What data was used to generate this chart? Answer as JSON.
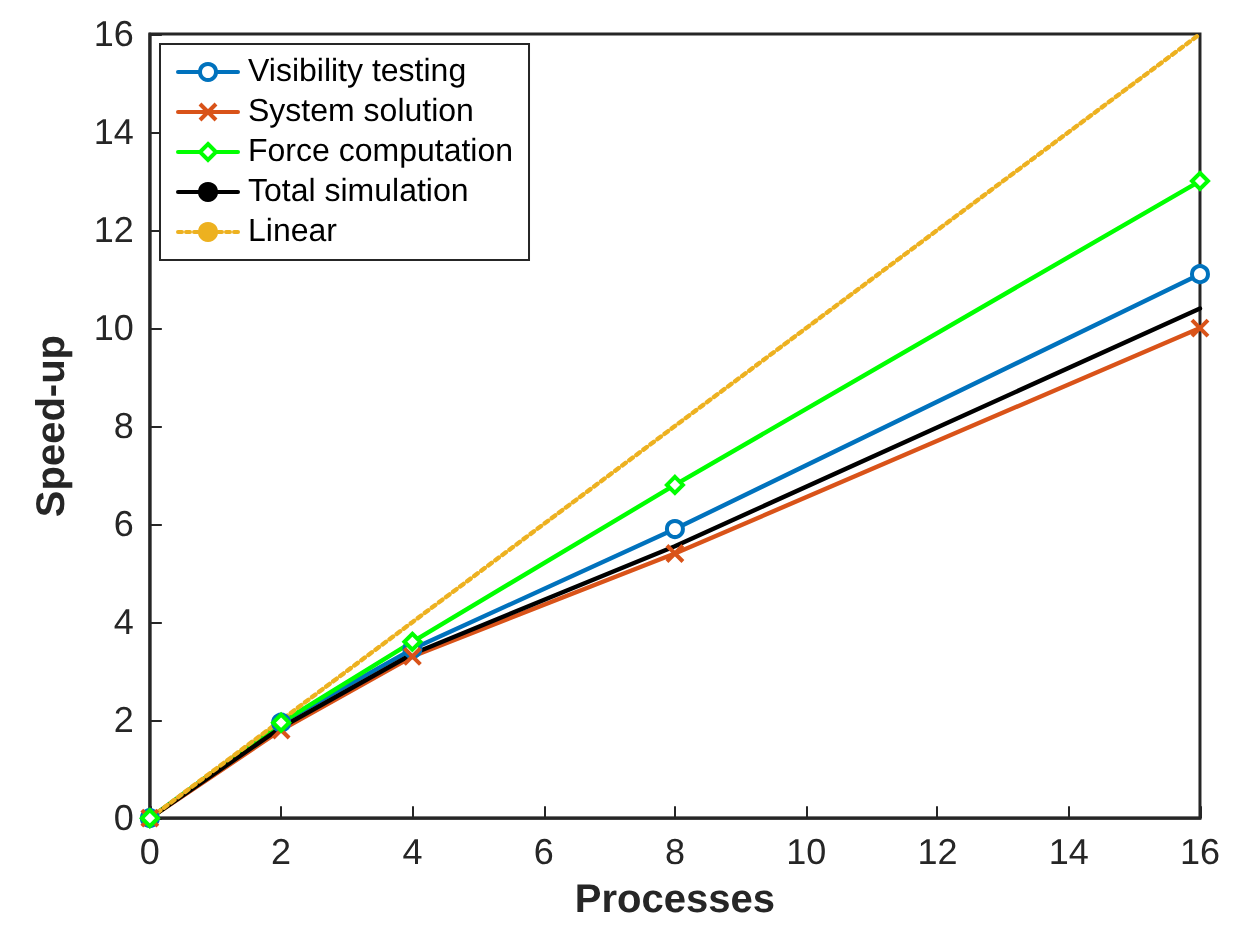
{
  "chart_data": {
    "type": "line",
    "xlabel": "Processes",
    "ylabel": "Speed-up",
    "x": [
      0,
      2,
      4,
      8,
      16
    ],
    "series": [
      {
        "name": "Visibility testing",
        "color": "#0072bd",
        "marker": "circle",
        "values": [
          0,
          1.95,
          3.45,
          5.9,
          11.1
        ]
      },
      {
        "name": "System solution",
        "color": "#d95319",
        "marker": "cross",
        "values": [
          0,
          1.8,
          3.3,
          5.4,
          10.0
        ]
      },
      {
        "name": "Force computation",
        "color": "#00ff00",
        "marker": "diamond",
        "values": [
          0,
          1.95,
          3.6,
          6.8,
          13.0
        ]
      },
      {
        "name": "Total simulation",
        "color": "#000000",
        "marker": "none",
        "values": [
          0,
          1.85,
          3.35,
          5.55,
          10.4
        ]
      },
      {
        "name": "Linear",
        "color": "#edb120",
        "marker": "none",
        "line_style": "dotted",
        "values": [
          0,
          2,
          4,
          8,
          16
        ]
      }
    ],
    "xlim": [
      0,
      16
    ],
    "xticks": [
      0,
      2,
      4,
      6,
      8,
      10,
      12,
      14,
      16
    ],
    "ylim": [
      0,
      16
    ],
    "yticks": [
      0,
      2,
      4,
      6,
      8,
      10,
      12,
      14,
      16
    ],
    "grid": false,
    "legend": "top left"
  }
}
